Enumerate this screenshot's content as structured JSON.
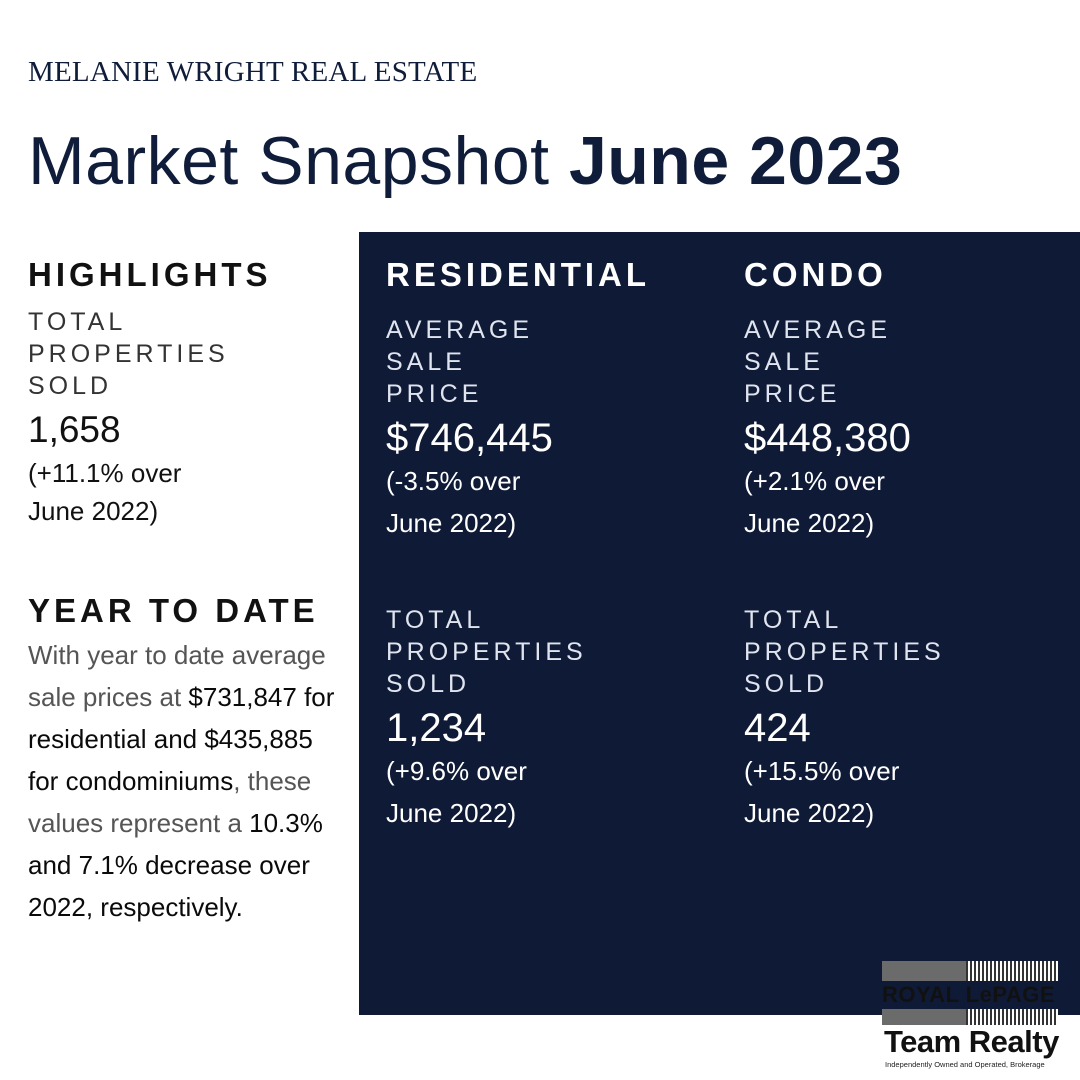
{
  "brand": "MELANIE WRIGHT REAL ESTATE",
  "title": {
    "regular": "Market Snapshot ",
    "bold": "June 2023"
  },
  "highlights": {
    "heading": "HIGHLIGHTS",
    "label": "TOTAL\nPROPERTIES\nSOLD",
    "value": "1,658",
    "change": "(+11.1% over\nJune 2022)"
  },
  "year_to_date": {
    "heading": "YEAR TO DATE",
    "text_parts": [
      "With year to date average sale prices at ",
      "$731,847 for residential and $435,885 for condominiums",
      ", these values represent a ",
      "10.3% and 7.1% decrease over 2022, respectively."
    ]
  },
  "residential": {
    "heading": "RESIDENTIAL",
    "price_label": "AVERAGE\nSALE\nPRICE",
    "price_value": "$746,445",
    "price_change": "(-3.5% over\nJune 2022)",
    "sold_label": "TOTAL\nPROPERTIES\nSOLD",
    "sold_value": "1,234",
    "sold_change": "(+9.6% over\nJune 2022)"
  },
  "condo": {
    "heading": "CONDO",
    "price_label": "AVERAGE\nSALE\nPRICE",
    "price_value": "$448,380",
    "price_change": "(+2.1% over\nJune 2022)",
    "sold_label": "TOTAL\nPROPERTIES\nSOLD",
    "sold_value": "424",
    "sold_change": "(+15.5% over\nJune 2022)"
  },
  "logo": {
    "line1": "ROYAL LePAGE",
    "line2": "Team Realty",
    "tagline": "Independently Owned and Operated, Brokerage"
  },
  "colors": {
    "navy": "#0f1a36",
    "text_dark": "#111111",
    "white": "#ffffff"
  }
}
